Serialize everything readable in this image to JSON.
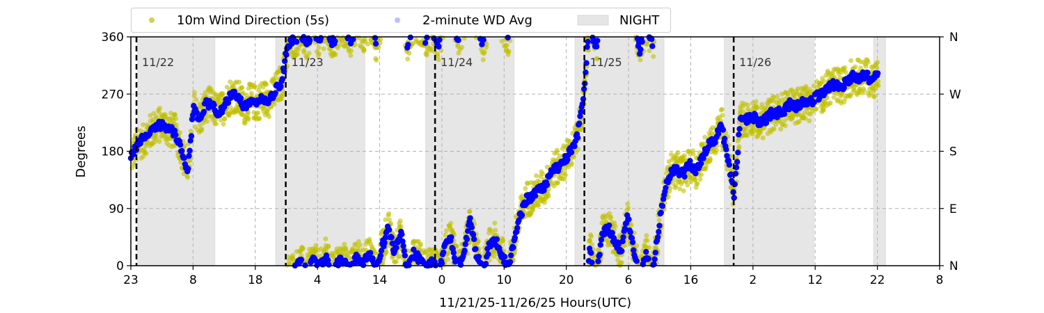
{
  "chart_data": {
    "type": "scatter",
    "xlabel": "11/21/25-11/26/25  Hours(UTC)",
    "ylabel": "Degrees",
    "xlim": [
      0,
      130
    ],
    "ylim": [
      0,
      360
    ],
    "x_ticks": [
      0,
      10,
      20,
      30,
      40,
      50,
      60,
      70,
      80,
      90,
      100,
      110,
      120,
      130
    ],
    "x_tick_labels": [
      "23",
      "8",
      "18",
      "4",
      "14",
      "0",
      "10",
      "20",
      "6",
      "16",
      "2",
      "12",
      "22",
      "8"
    ],
    "y_ticks": [
      0,
      90,
      180,
      270,
      360
    ],
    "y_tick_labels": [
      "0",
      "90",
      "180",
      "270",
      "360"
    ],
    "y2_tick_labels": [
      "N",
      "E",
      "S",
      "W",
      "N"
    ],
    "grid": true,
    "legend": {
      "placement": "top-left-outside",
      "entries": [
        "10m Wind Direction (5s)",
        "2-minute WD Avg",
        "NIGHT"
      ]
    },
    "day_markers": [
      {
        "hour": 0.9,
        "label": "11/22"
      },
      {
        "hour": 24.9,
        "label": "11/23"
      },
      {
        "hour": 48.9,
        "label": "11/24"
      },
      {
        "hour": 72.9,
        "label": "11/25"
      },
      {
        "hour": 96.9,
        "label": "11/26"
      }
    ],
    "night_periods": [
      [
        1.1,
        13.5
      ],
      [
        23.3,
        37.6
      ],
      [
        47.4,
        61.6
      ],
      [
        71.4,
        85.7
      ],
      [
        95.4,
        109.8
      ],
      [
        119.4,
        121.3
      ]
    ],
    "series": [
      {
        "name": "2-minute WD Avg",
        "color": "#0000ff",
        "start_hour": 0,
        "step_hours": 1.01,
        "values": [
          170,
          190,
          200,
          210,
          220,
          222,
          215,
          210,
          185,
          145,
          250,
          230,
          255,
          250,
          240,
          255,
          270,
          265,
          250,
          260,
          255,
          265,
          260,
          275,
          290,
          350,
          355,
          5,
          350,
          10,
          355,
          15,
          350,
          5,
          10,
          355,
          15,
          5,
          20,
          350,
          30,
          60,
          20,
          50,
          350,
          20,
          10,
          355,
          5,
          350,
          30,
          40,
          355,
          20,
          70,
          20,
          350,
          30,
          40,
          20,
          355,
          40,
          80,
          105,
          110,
          120,
          125,
          150,
          155,
          165,
          180,
          200,
          260,
          30,
          340,
          50,
          60,
          40,
          20,
          80,
          30,
          340,
          20,
          350,
          60,
          120,
          150,
          150,
          145,
          160,
          150,
          170,
          190,
          200,
          220,
          170,
          110,
          230,
          230,
          235,
          225,
          230,
          240,
          240,
          245,
          255,
          250,
          260,
          255,
          265,
          270,
          280,
          285,
          280,
          290,
          300,
          295,
          300,
          290,
          305
        ]
      },
      {
        "name": "10m Wind Direction (5s)",
        "color": "#bfbf00",
        "spread_deg": 28,
        "note_values": "scattered around 2-minute average"
      }
    ]
  }
}
